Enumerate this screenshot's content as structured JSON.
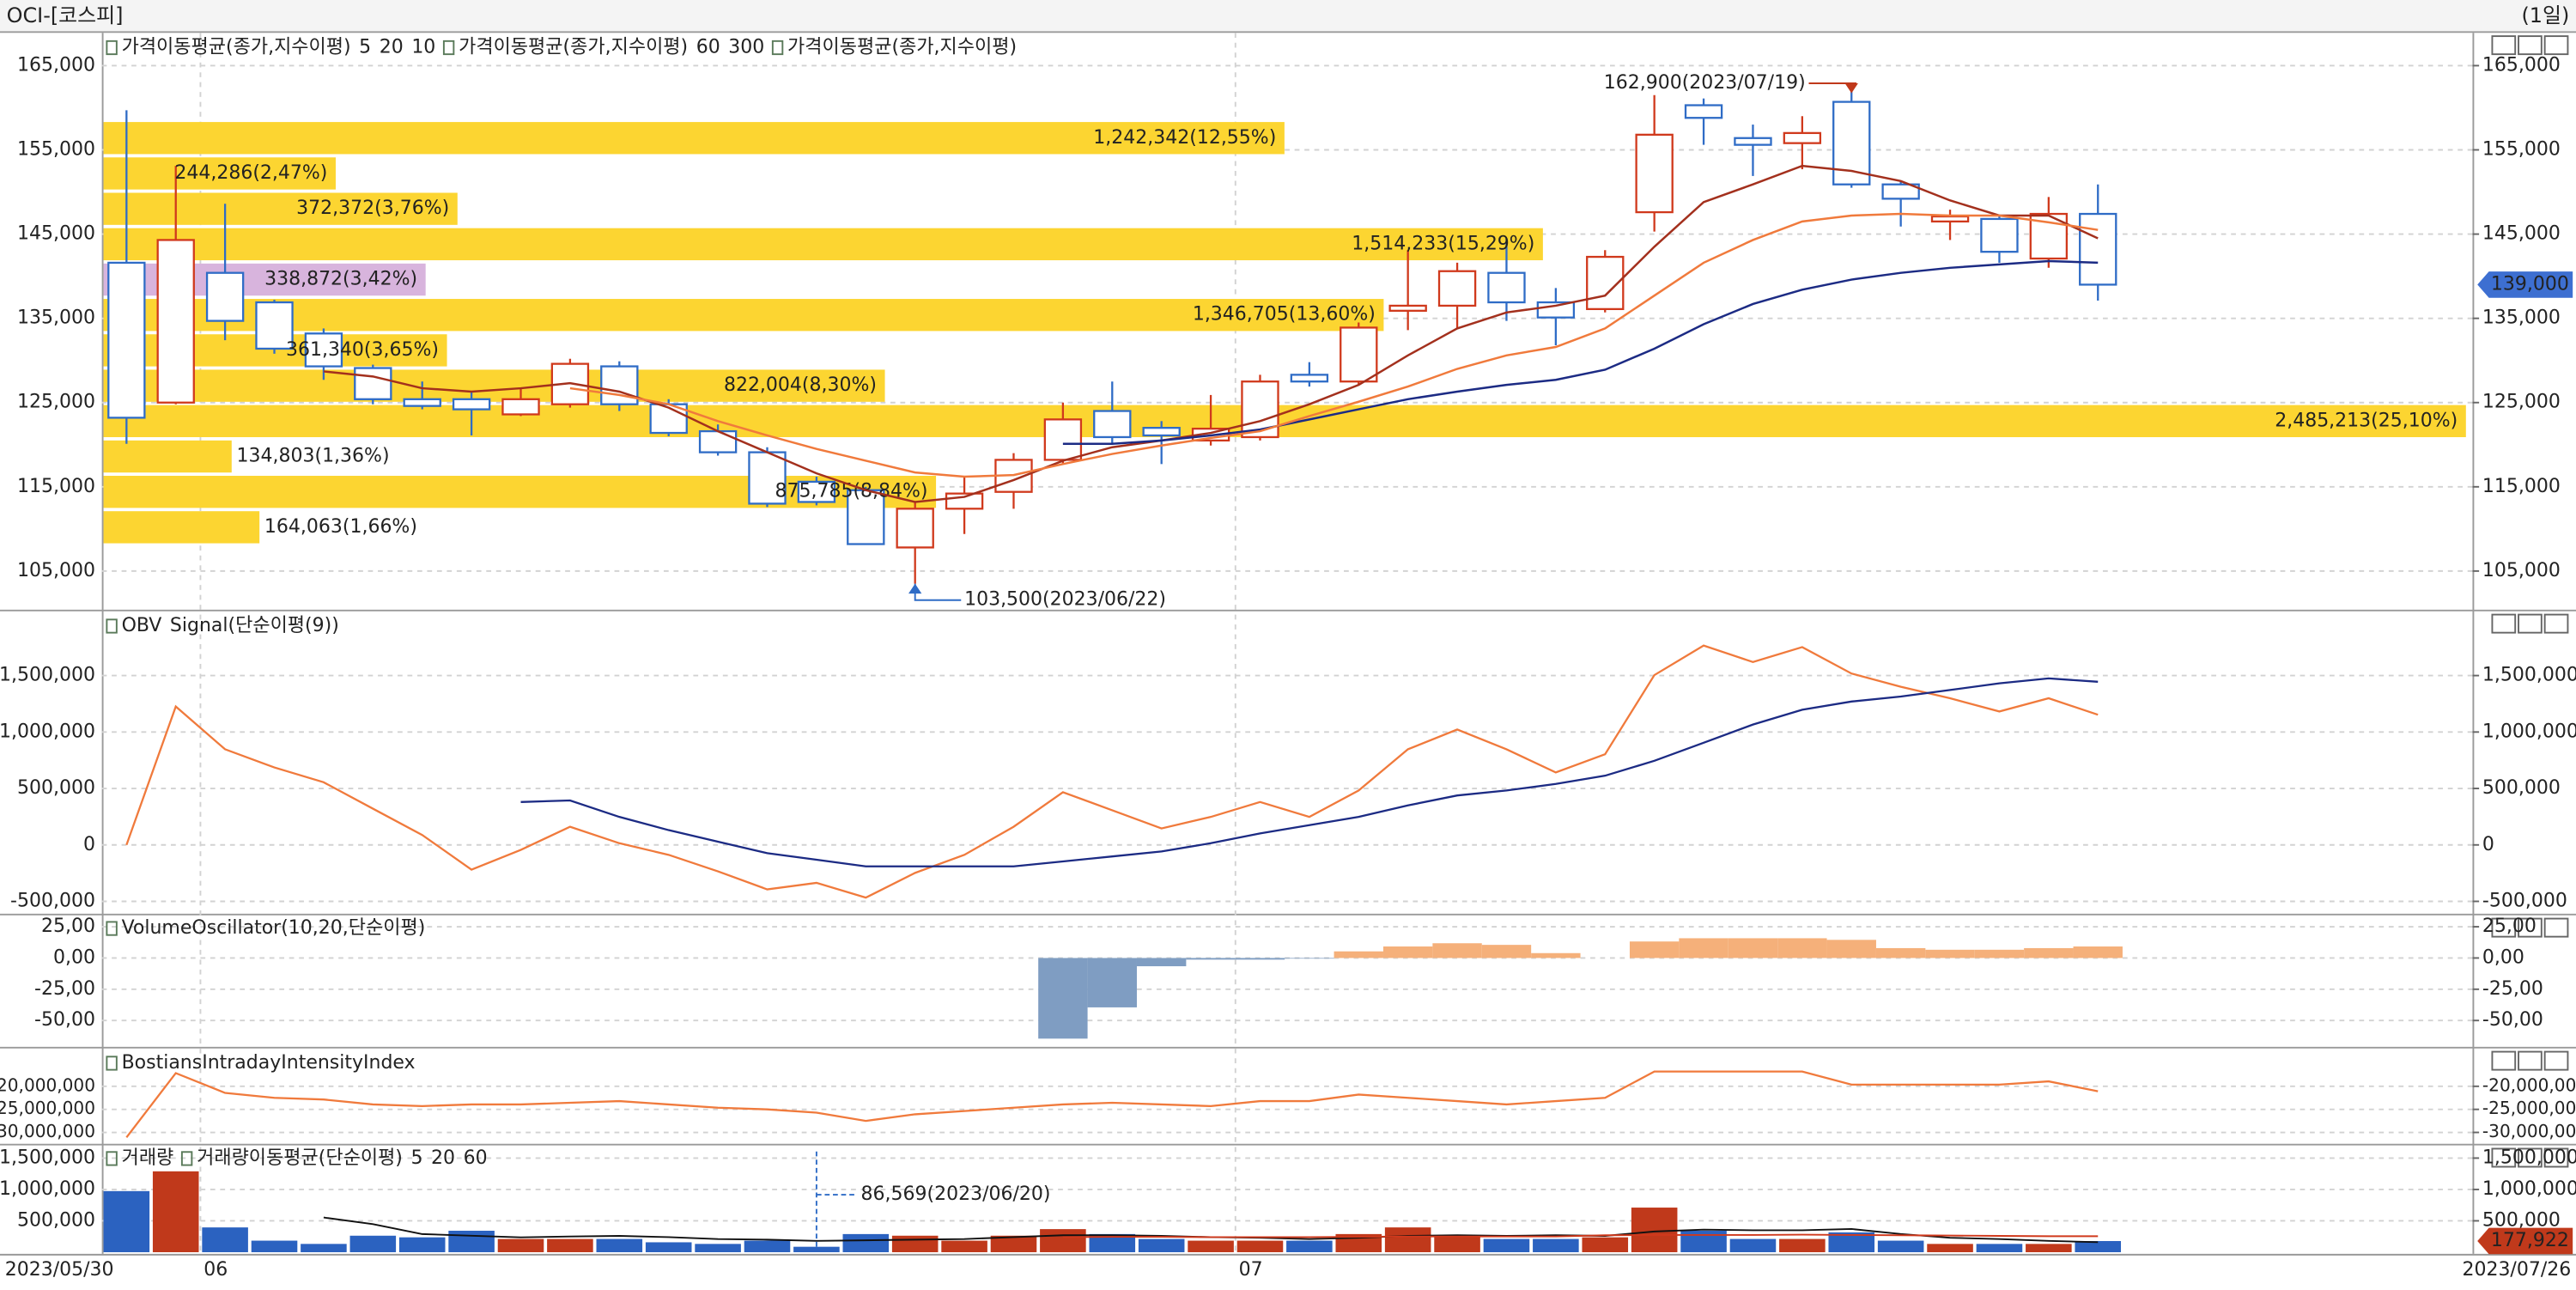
{
  "header": {
    "title": "OCI-[코스피]",
    "period": "(1일)"
  },
  "chart_data": [
    {
      "type": "candlestick",
      "categories": [
        "2023/05/30",
        null,
        "06",
        null,
        null,
        null,
        null,
        null,
        null,
        null,
        null,
        null,
        null,
        null,
        null,
        null,
        null,
        null,
        null,
        null,
        null,
        null,
        null,
        "07",
        null,
        null,
        null,
        null,
        null,
        null,
        null,
        null,
        null,
        null,
        null,
        null,
        null,
        null,
        null,
        null,
        "2023/07/26"
      ],
      "open": [
        141600,
        125000,
        140400,
        136900,
        133200,
        129100,
        125400,
        125400,
        123600,
        124800,
        129300,
        124800,
        121600,
        119100,
        115600,
        114600,
        107800,
        112400,
        114400,
        118200,
        124000,
        122000,
        120500,
        120900,
        128300,
        127500,
        135900,
        136500,
        140400,
        136900,
        136100,
        147600,
        160300,
        156400,
        155800,
        160700,
        150900,
        146500,
        146800,
        142100,
        147400
      ],
      "high": [
        159700,
        153100,
        148600,
        137200,
        133800,
        129500,
        127500,
        126300,
        126700,
        130200,
        129900,
        125400,
        122400,
        119700,
        116200,
        115000,
        113200,
        116200,
        119000,
        125000,
        127500,
        122800,
        125900,
        128300,
        129800,
        134500,
        143100,
        141600,
        144500,
        138600,
        143100,
        161500,
        161100,
        158000,
        159000,
        162900,
        151300,
        147900,
        147200,
        149400,
        150900
      ],
      "low": [
        120100,
        124800,
        132400,
        130800,
        127700,
        124800,
        124200,
        121100,
        123400,
        124400,
        124000,
        121000,
        118700,
        112600,
        112800,
        108200,
        103500,
        109400,
        112400,
        117800,
        120100,
        117700,
        119900,
        120500,
        126900,
        127100,
        133600,
        133800,
        134700,
        131800,
        135700,
        145300,
        155600,
        151900,
        152700,
        150500,
        145900,
        144300,
        141600,
        141000,
        137100
      ],
      "close": [
        123200,
        144300,
        134700,
        131400,
        129300,
        125400,
        124600,
        124200,
        125400,
        129600,
        124800,
        121400,
        119100,
        113000,
        113200,
        108200,
        112400,
        114200,
        118200,
        123000,
        120900,
        121100,
        121900,
        127500,
        127500,
        133900,
        136500,
        140600,
        136900,
        135100,
        142300,
        156800,
        158800,
        155600,
        157000,
        150900,
        149200,
        147100,
        142900,
        147400,
        139000
      ],
      "up_color": "#d0391c",
      "down_color": "#2f6cc6",
      "legend_groups": [
        {
          "name": "가격이동평균(종가,지수이평)",
          "items": [
            {
              "name": "5",
              "color": "#a3301d",
              "values": [
                null,
                null,
                null,
                null,
                128700,
                128100,
                126700,
                126300,
                126700,
                127300,
                126300,
                124400,
                121600,
                119100,
                116600,
                114600,
                113200,
                113800,
                115800,
                118100,
                119700,
                120500,
                121400,
                122800,
                124800,
                127100,
                130600,
                133800,
                135700,
                136500,
                137700,
                143500,
                148800,
                150900,
                153100,
                152500,
                151300,
                149000,
                147200,
                147200,
                144500
              ]
            },
            {
              "name": "20",
              "color": "#1c2b84",
              "values": [
                null,
                null,
                null,
                null,
                null,
                null,
                null,
                null,
                null,
                null,
                null,
                null,
                null,
                null,
                null,
                null,
                null,
                null,
                null,
                120100,
                120100,
                120500,
                121100,
                121800,
                123000,
                124200,
                125400,
                126300,
                127100,
                127700,
                128900,
                131400,
                134300,
                136700,
                138400,
                139600,
                140400,
                141000,
                141400,
                141800,
                141600
              ]
            },
            {
              "name": "10",
              "color": "#f07a3c",
              "values": [
                null,
                null,
                null,
                null,
                null,
                null,
                null,
                null,
                null,
                126700,
                125900,
                124800,
                122800,
                121100,
                119500,
                118100,
                116700,
                116200,
                116400,
                117700,
                118900,
                119900,
                120800,
                121600,
                123400,
                125100,
                126900,
                129000,
                130600,
                131600,
                133800,
                137700,
                141600,
                144300,
                146500,
                147200,
                147400,
                147200,
                147200,
                146400,
                145500
              ]
            }
          ]
        },
        {
          "name": "가격이동평균(종가,지수이평)",
          "items": [
            {
              "name": "60",
              "color": "#2e8b2e"
            },
            {
              "name": "300",
              "color": "#222222"
            }
          ]
        },
        {
          "name": "가격이동평균(종가,지수이평)",
          "items": []
        }
      ],
      "profile": {
        "bins": [
          158500,
          154300,
          150100,
          145900,
          141700,
          137500,
          133300,
          129100,
          124900,
          120700,
          116500,
          112300,
          108100
        ],
        "values": [
          1242342,
          244286,
          372372,
          1514233,
          338872,
          1346705,
          361340,
          822004,
          2485213,
          134803,
          875785,
          164063
        ],
        "value_labels": [
          "1,242,342(12,55%)",
          "244,286(2,47%)",
          "372,372(3,76%)",
          "1,514,233(15,29%)",
          "338,872(3,42%)",
          "1,346,705(13,60%)",
          "361,340(3,65%)",
          "822,004(8,30%)",
          "2,485,213(25,10%)",
          "134,803(1,36%)",
          "875,785(8,84%)",
          "164,063(1,66%)"
        ],
        "colors": [
          "#fcd531",
          "#fcd531",
          "#fcd531",
          "#fcd531",
          "#d8b4dd",
          "#fcd531",
          "#fcd531",
          "#fcd531",
          "#fcd531",
          "#fcd531",
          "#fcd531",
          "#fcd531"
        ]
      },
      "high_annotation": {
        "value": 162900,
        "label": "162,900(2023/07/19)",
        "color": "#c0391b"
      },
      "low_annotation": {
        "value": 103500,
        "label": "103,500(2023/06/22)",
        "color": "#2f6cc6"
      },
      "current_price": {
        "value": 139000,
        "label": "139,000",
        "color": "#3d6fd1"
      },
      "ylim": [
        101000,
        168500
      ],
      "yticks": [
        {
          "value": 105000,
          "label": "105,000"
        },
        {
          "value": 115000,
          "label": "115,000"
        },
        {
          "value": 125000,
          "label": "125,000"
        },
        {
          "value": 135000,
          "label": "135,000"
        },
        {
          "value": 145000,
          "label": "145,000"
        },
        {
          "value": 155000,
          "label": "155,000"
        },
        {
          "value": 165000,
          "label": "165,000"
        }
      ],
      "grid": true
    },
    {
      "type": "line",
      "series": [
        {
          "name": "OBV",
          "color": "#f07a3c",
          "values": [
            0,
            1226000,
            847000,
            686000,
            555000,
            321000,
            88000,
            -219000,
            -44000,
            161000,
            15000,
            -88000,
            -234000,
            -394000,
            -336000,
            -467000,
            -248000,
            -88000,
            161000,
            467000,
            307000,
            146000,
            248000,
            380000,
            248000,
            482000,
            847000,
            1022000,
            847000,
            642000,
            803000,
            1504000,
            1766000,
            1620000,
            1752000,
            1518000,
            1401000,
            1299000,
            1182000,
            1299000,
            1153000
          ]
        },
        {
          "name": "Signal(단순이평(9))",
          "color": "#1c2b84",
          "values": [
            null,
            null,
            null,
            null,
            null,
            null,
            null,
            null,
            380000,
            394000,
            248000,
            131000,
            29000,
            -73000,
            -131000,
            -190000,
            -190000,
            -190000,
            -190000,
            -146000,
            -102000,
            -58000,
            15000,
            102000,
            175000,
            248000,
            350000,
            438000,
            482000,
            540000,
            613000,
            745000,
            905000,
            1066000,
            1197000,
            1270000,
            1314000,
            1372000,
            1431000,
            1475000,
            1445000
          ]
        }
      ],
      "ylim": [
        -580000,
        2040000
      ],
      "yticks": [
        {
          "value": -500000,
          "label": "-500,000"
        },
        0,
        {
          "value": 500000,
          "label": "500,000"
        },
        {
          "value": 1000000,
          "label": "1,000,000"
        },
        {
          "value": 1500000,
          "label": "1,500,000"
        }
      ],
      "grid": true
    },
    {
      "type": "bar",
      "title": "VolumeOscillator(10,20,단순이평)",
      "values": [
        null,
        null,
        null,
        null,
        null,
        null,
        null,
        null,
        null,
        null,
        null,
        null,
        null,
        null,
        null,
        null,
        null,
        null,
        null,
        -64.5,
        -39.5,
        -6.6,
        -1.3,
        -1.3,
        -0.5,
        5.3,
        9.2,
        11.8,
        10.5,
        3.9,
        0,
        13.2,
        15.8,
        15.8,
        15.8,
        14.5,
        7.9,
        6.6,
        6.6,
        7.9,
        9.2
      ],
      "positive_color": "#f5b07a",
      "negative_color": "#7f9dc2",
      "ylim": [
        -68.4,
        31.5
      ],
      "yticks": [
        {
          "value": -50,
          "label": "-50,00"
        },
        {
          "value": -25,
          "label": "-25,00"
        },
        {
          "value": 0,
          "label": "0,00"
        },
        {
          "value": 25,
          "label": "25,00"
        }
      ],
      "grid": true
    },
    {
      "type": "line",
      "series": [
        {
          "name": "BostiansIntradayIntensityIndex",
          "color": "#f07a3c",
          "values": [
            -31070000,
            -17140000,
            -21430000,
            -22500000,
            -22860000,
            -23930000,
            -24290000,
            -23930000,
            -23930000,
            -23570000,
            -23210000,
            -23930000,
            -24640000,
            -25000000,
            -25710000,
            -27500000,
            -26070000,
            -25360000,
            -24640000,
            -23930000,
            -23570000,
            -23930000,
            -24290000,
            -23210000,
            -23210000,
            -21790000,
            -22500000,
            -23210000,
            -23930000,
            -23210000,
            -22500000,
            -16790000,
            -16790000,
            -16790000,
            -16790000,
            -19640000,
            -19640000,
            -19640000,
            -19640000,
            -18930000,
            -21070000
          ]
        }
      ],
      "ylim": [
        -32100000,
        -12500000
      ],
      "yticks": [
        {
          "value": -30000000,
          "label": "-30,000,000"
        },
        {
          "value": -25000000,
          "label": "-25,000,000"
        },
        {
          "value": -20000000,
          "label": "-20,000,000"
        }
      ],
      "grid": true
    },
    {
      "type": "volume",
      "series": [
        {
          "name": "거래량",
          "values": [
            974000,
            1289000,
            395000,
            184000,
            132000,
            263000,
            237000,
            342000,
            211000,
            211000,
            211000,
            158000,
            132000,
            184000,
            86569,
            289000,
            263000,
            184000,
            263000,
            368000,
            289000,
            211000,
            184000,
            184000,
            184000,
            289000,
            395000,
            263000,
            211000,
            211000,
            237000,
            711000,
            342000,
            211000,
            211000,
            316000,
            184000,
            132000,
            132000,
            132000,
            177922
          ]
        }
      ],
      "legend_groups": [
        {
          "name": "거래량이동평균(단순이평)",
          "items": [
            {
              "name": "5",
              "color": "#111111",
              "values": [
                null,
                null,
                null,
                null,
                553000,
                447000,
                289000,
                263000,
                237000,
                250000,
                260000,
                240000,
                210000,
                200000,
                180000,
                190000,
                200000,
                210000,
                240000,
                270000,
                270000,
                260000,
                240000,
                230000,
                210000,
                230000,
                260000,
                270000,
                260000,
                270000,
                260000,
                330000,
                360000,
                350000,
                350000,
                370000,
                290000,
                230000,
                210000,
                180000,
                160000
              ]
            },
            {
              "name": "20",
              "color": "#d0391c",
              "values": [
                null,
                null,
                null,
                null,
                null,
                null,
                null,
                null,
                null,
                null,
                null,
                null,
                null,
                null,
                null,
                null,
                null,
                null,
                null,
                240000,
                245000,
                245000,
                240000,
                240000,
                240000,
                245000,
                250000,
                250000,
                250000,
                250000,
                270000,
                275000,
                275000,
                275000,
                280000,
                275000,
                270000,
                265000,
                260000,
                255000,
                255000
              ]
            },
            {
              "name": "60",
              "color": "#2e8b2e"
            }
          ]
        }
      ],
      "low_annotation": {
        "value": 86569,
        "label": "86,569(2023/06/20)",
        "color": "#2f6cc6"
      },
      "last_volume": {
        "value": 177922,
        "label": "177,922",
        "color": "#c0391b"
      },
      "up_color": "#c0391b",
      "down_color": "#2b62c0",
      "ylim": [
        0,
        1650000
      ],
      "yticks": [
        {
          "value": 500000,
          "label": "500,000"
        },
        {
          "value": 1000000,
          "label": "1,000,000"
        },
        {
          "value": 1500000,
          "label": "1,500,000"
        }
      ],
      "grid": true
    }
  ]
}
